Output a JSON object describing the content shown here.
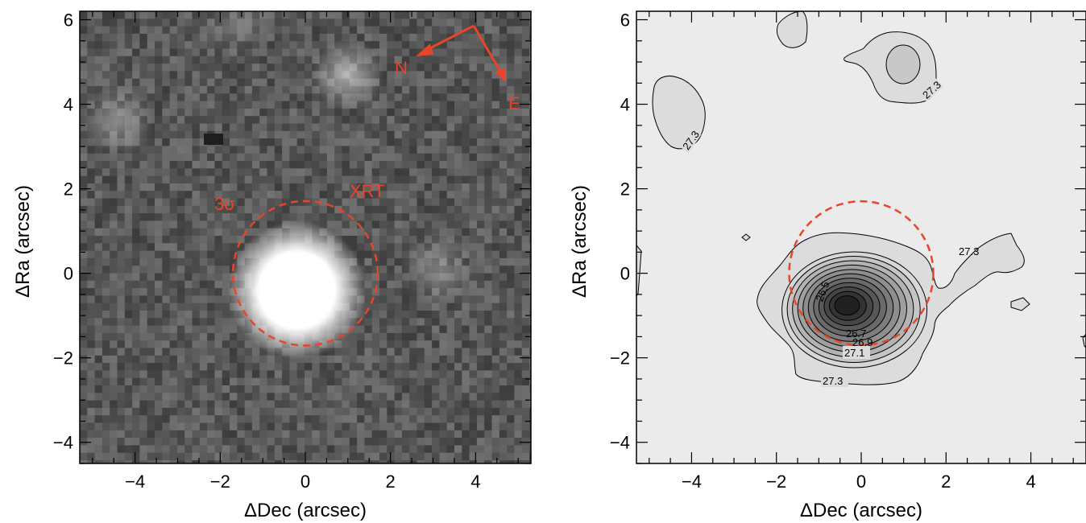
{
  "chart_data": [
    {
      "type": "heatmap",
      "title": "",
      "xlabel": "ΔDec (arcsec)",
      "ylabel": "ΔRa (arcsec)",
      "xlim": [
        -5.3,
        5.3
      ],
      "ylim": [
        -4.5,
        6.2
      ],
      "xticks": [
        -4,
        -2,
        0,
        2,
        4
      ],
      "yticks": [
        -4,
        -2,
        0,
        2,
        4,
        6
      ],
      "xtick_labels": [
        "−4",
        "−2",
        "0",
        "2",
        "4"
      ],
      "ytick_labels": [
        "−4",
        "−2",
        "0",
        "2",
        "4",
        "6"
      ],
      "colormap": "grayscale",
      "grid": false,
      "sources": [
        {
          "x": -0.2,
          "y": -0.4,
          "peak": 1.0,
          "sigma": 1.05
        },
        {
          "x": 1.0,
          "y": 4.7,
          "peak": 0.55,
          "sigma": 0.45
        },
        {
          "x": -4.4,
          "y": 3.6,
          "peak": 0.35,
          "sigma": 0.45
        },
        {
          "x": 3.1,
          "y": 0.1,
          "peak": 0.3,
          "sigma": 0.45
        },
        {
          "x": -1.6,
          "y": 5.9,
          "peak": 0.15,
          "sigma": 0.5
        }
      ],
      "error_circle": {
        "x": 0,
        "y": 0,
        "radius": 1.7,
        "color": "#e8452a",
        "style": "dashed"
      },
      "annotations": {
        "sigma_label": "3σ",
        "xrt_label": "XRT",
        "north_label": "N",
        "east_label": "E",
        "compass_color": "#e8452a"
      }
    },
    {
      "type": "contour",
      "title": "",
      "xlabel": "ΔDec (arcsec)",
      "ylabel": "ΔRa (arcsec)",
      "xlim": [
        -5.3,
        5.3
      ],
      "ylim": [
        -4.5,
        6.2
      ],
      "xticks": [
        -4,
        -2,
        0,
        2,
        4
      ],
      "yticks": [
        -4,
        -2,
        0,
        2,
        4,
        6
      ],
      "xtick_labels": [
        "−4",
        "−2",
        "0",
        "2",
        "4"
      ],
      "ytick_labels": [
        "−4",
        "−2",
        "0",
        "2",
        "4",
        "6"
      ],
      "grid": false,
      "contour_labels": [
        "27.3",
        "27.3",
        "27.3",
        "27.3",
        "27.1",
        "26.9",
        "26.7",
        "26.5"
      ],
      "contour_levels": [
        27.3,
        27.1,
        26.9,
        26.7,
        26.5
      ],
      "main_source_center": {
        "x": -0.35,
        "y": -0.75
      },
      "error_circle": {
        "x": 0,
        "y": 0,
        "radius": 1.7,
        "color": "#e8452a",
        "style": "dashed"
      }
    }
  ]
}
